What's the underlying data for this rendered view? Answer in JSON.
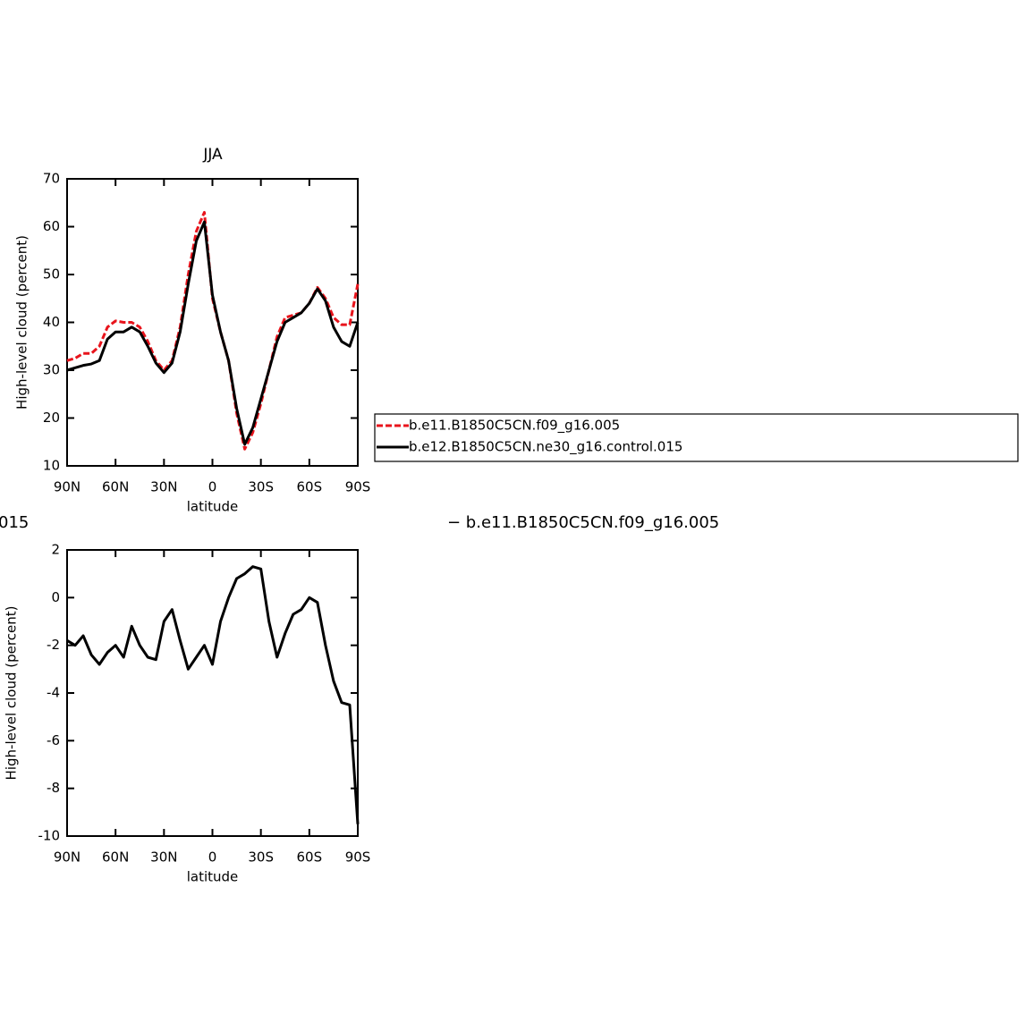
{
  "chart_data": [
    {
      "type": "line",
      "title": "JJA",
      "xlabel": "latitude",
      "ylabel": "High-level cloud (percent)",
      "x": [
        90,
        85,
        80,
        75,
        70,
        65,
        60,
        55,
        50,
        45,
        40,
        35,
        30,
        25,
        20,
        15,
        10,
        5,
        0,
        -5,
        -10,
        -15,
        -20,
        -25,
        -30,
        -35,
        -40,
        -45,
        -50,
        -55,
        -60,
        -65,
        -70,
        -75,
        -80,
        -85,
        -90
      ],
      "series": [
        {
          "name": "b.e11.B1850C5CN.f09_g16.005",
          "color": "#e8141c",
          "linestyle": "dashed",
          "values": [
            32,
            32.5,
            33.5,
            33.5,
            35,
            39,
            40.3,
            40,
            40,
            39,
            36,
            32,
            30,
            32,
            39,
            50,
            59,
            63,
            45,
            38,
            32,
            21,
            13.5,
            17,
            23,
            30,
            37,
            41,
            41.5,
            42,
            44,
            47.3,
            45,
            41,
            39.5,
            39.5,
            48
          ]
        },
        {
          "name": "b.e12.B1850C5CN.ne30_g16.control.015",
          "color": "#000000",
          "linestyle": "solid",
          "values": [
            30,
            30.5,
            31,
            31.3,
            32,
            36.5,
            38,
            38,
            39,
            38,
            35,
            31.5,
            29.5,
            31.5,
            38,
            48,
            57,
            61,
            45.7,
            38,
            32,
            22,
            14.5,
            18,
            24,
            30,
            36,
            40,
            41,
            42,
            44,
            47,
            44.5,
            39,
            36,
            35,
            40
          ]
        }
      ],
      "xlim": [
        90,
        -90
      ],
      "xticks": [
        {
          "value": 90,
          "label": "90N"
        },
        {
          "value": 60,
          "label": "60N"
        },
        {
          "value": 30,
          "label": "30N"
        },
        0,
        {
          "value": -30,
          "label": "30S"
        },
        {
          "value": -60,
          "label": "60S"
        },
        {
          "value": -90,
          "label": "90S"
        }
      ],
      "ylim": [
        10,
        70
      ],
      "yticks": [
        10,
        20,
        30,
        40,
        50,
        60,
        70
      ]
    },
    {
      "type": "line",
      "title_left": "015",
      "title_right": "− b.e11.B1850C5CN.f09_g16.005",
      "xlabel": "latitude",
      "ylabel": "High-level cloud (percent)",
      "x": [
        90,
        85,
        80,
        75,
        70,
        65,
        60,
        55,
        50,
        45,
        40,
        35,
        30,
        25,
        20,
        15,
        10,
        5,
        0,
        -5,
        -10,
        -15,
        -20,
        -25,
        -30,
        -35,
        -40,
        -45,
        -50,
        -55,
        -60,
        -65,
        -70,
        -75,
        -80,
        -85,
        -90
      ],
      "series": [
        {
          "color": "#000000",
          "linestyle": "solid",
          "values": [
            -1.8,
            -2,
            -1.6,
            -2.4,
            -2.8,
            -2.3,
            -2,
            -2.5,
            -1.2,
            -2,
            -2.5,
            -2.6,
            -1,
            -0.5,
            -1.8,
            -3,
            -2.5,
            -2,
            -2.8,
            -1,
            0,
            0.8,
            1,
            1.3,
            1.2,
            -1,
            -2.5,
            -1.5,
            -0.7,
            -0.5,
            0,
            -0.2,
            -2,
            -3.5,
            -4.4,
            -4.5,
            -9.5
          ]
        }
      ],
      "xlim": [
        90,
        -90
      ],
      "xticks": [
        {
          "value": 90,
          "label": "90N"
        },
        {
          "value": 60,
          "label": "60N"
        },
        {
          "value": 30,
          "label": "30N"
        },
        0,
        {
          "value": -30,
          "label": "30S"
        },
        {
          "value": -60,
          "label": "60S"
        },
        {
          "value": -90,
          "label": "90S"
        }
      ],
      "ylim": [
        -10,
        2
      ],
      "yticks": [
        -10,
        -8,
        -6,
        -4,
        -2,
        0,
        2
      ]
    }
  ]
}
